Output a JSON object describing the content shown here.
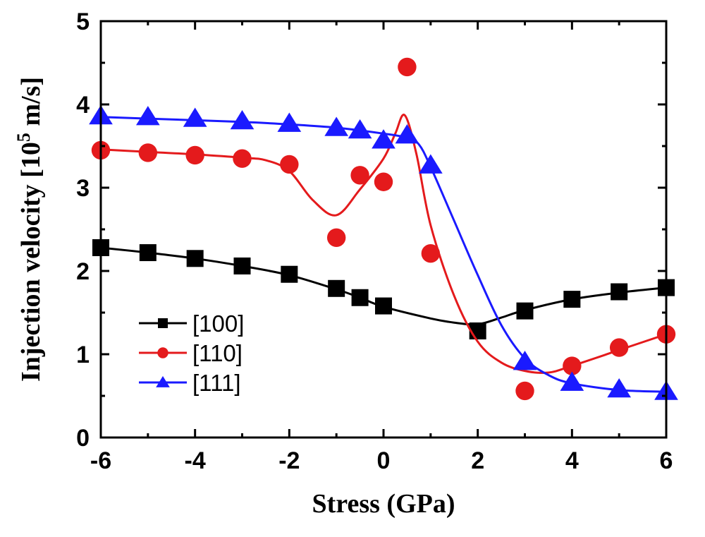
{
  "chart_data": {
    "type": "scatter",
    "xlabel": "Stress (GPa)",
    "ylabel_main": "Injection velocity [10",
    "ylabel_sup": "5",
    "ylabel_tail": " m/s]",
    "xlim": [
      -6,
      6
    ],
    "ylim": [
      0,
      5
    ],
    "xticks": [
      -6,
      -4,
      -2,
      0,
      2,
      4,
      6
    ],
    "yticks": [
      0,
      1,
      2,
      3,
      4,
      5
    ],
    "grid": false,
    "legend_position": "bottom-left",
    "series": [
      {
        "name": "[100]",
        "color": "#000000",
        "marker": "square",
        "x": [
          -6,
          -5,
          -4,
          -3,
          -2,
          -1,
          -0.5,
          0,
          2,
          3,
          4,
          5,
          6
        ],
        "y": [
          2.28,
          2.22,
          2.15,
          2.06,
          1.96,
          1.79,
          1.68,
          1.58,
          1.28,
          1.52,
          1.66,
          1.75,
          1.8
        ],
        "fit": [
          [
            -6,
            2.28
          ],
          [
            -5,
            2.22
          ],
          [
            -4,
            2.15
          ],
          [
            -3,
            2.06
          ],
          [
            -2,
            1.95
          ],
          [
            -1,
            1.78
          ],
          [
            -0.5,
            1.68
          ],
          [
            0,
            1.57
          ],
          [
            1,
            1.43
          ],
          [
            1.5,
            1.38
          ],
          [
            2,
            1.36
          ],
          [
            2.5,
            1.44
          ],
          [
            3,
            1.53
          ],
          [
            4,
            1.66
          ],
          [
            5,
            1.74
          ],
          [
            6,
            1.8
          ]
        ]
      },
      {
        "name": "[110]",
        "color": "#e41a1c",
        "marker": "circle",
        "x": [
          -6,
          -5,
          -4,
          -3,
          -2,
          -1,
          -0.5,
          0,
          0.5,
          1,
          3,
          4,
          5,
          6
        ],
        "y": [
          3.45,
          3.42,
          3.39,
          3.35,
          3.28,
          2.4,
          3.15,
          3.07,
          4.45,
          2.21,
          0.56,
          0.86,
          1.08,
          1.24
        ],
        "fit": [
          [
            -6,
            3.46
          ],
          [
            -5,
            3.43
          ],
          [
            -4,
            3.4
          ],
          [
            -3,
            3.36
          ],
          [
            -2.5,
            3.33
          ],
          [
            -2,
            3.2
          ],
          [
            -1.5,
            2.85
          ],
          [
            -1,
            2.67
          ],
          [
            -0.5,
            2.98
          ],
          [
            0,
            3.35
          ],
          [
            0.25,
            3.65
          ],
          [
            0.45,
            3.87
          ],
          [
            0.7,
            3.4
          ],
          [
            1,
            2.55
          ],
          [
            1.5,
            1.7
          ],
          [
            2,
            1.15
          ],
          [
            2.5,
            0.9
          ],
          [
            3,
            0.8
          ],
          [
            3.5,
            0.78
          ],
          [
            4,
            0.86
          ],
          [
            5,
            1.05
          ],
          [
            6,
            1.24
          ]
        ]
      },
      {
        "name": "[111]",
        "color": "#1a1aff",
        "marker": "triangle",
        "x": [
          -6,
          -5,
          -4,
          -3,
          -2,
          -1,
          -0.5,
          0,
          0.5,
          1,
          3,
          4,
          5,
          6
        ],
        "y": [
          3.86,
          3.85,
          3.83,
          3.8,
          3.77,
          3.72,
          3.69,
          3.57,
          3.63,
          3.27,
          0.91,
          0.66,
          0.58,
          0.55
        ],
        "fit": [
          [
            -6,
            3.85
          ],
          [
            -5,
            3.83
          ],
          [
            -4,
            3.81
          ],
          [
            -3,
            3.79
          ],
          [
            -2,
            3.76
          ],
          [
            -1,
            3.72
          ],
          [
            0,
            3.65
          ],
          [
            0.5,
            3.6
          ],
          [
            0.75,
            3.52
          ],
          [
            1,
            3.25
          ],
          [
            1.5,
            2.6
          ],
          [
            2,
            1.95
          ],
          [
            2.5,
            1.35
          ],
          [
            3,
            0.95
          ],
          [
            3.5,
            0.75
          ],
          [
            4,
            0.65
          ],
          [
            5,
            0.57
          ],
          [
            6,
            0.55
          ]
        ]
      }
    ]
  }
}
